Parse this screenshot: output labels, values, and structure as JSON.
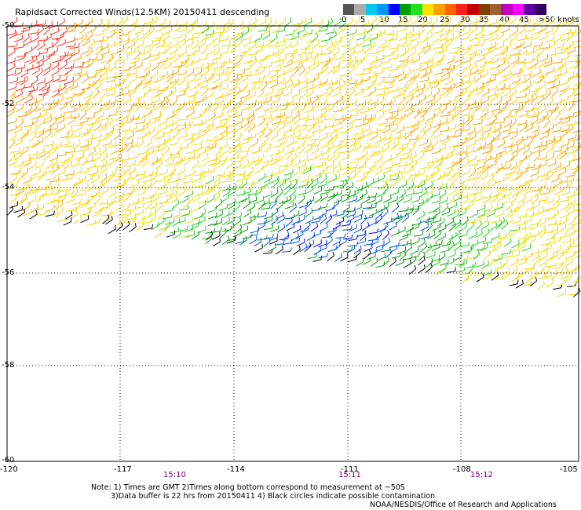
{
  "title": "Rapidsact Corrected Winds(12.5KM) 20150411 descending",
  "legend": {
    "labels": [
      "0",
      "5",
      "10",
      "15",
      "20",
      "25",
      "30",
      "35",
      "40",
      "45",
      ">50 knots"
    ],
    "colors": [
      "#555555",
      "#aaaaaa",
      "#00c8f0",
      "#0096ff",
      "#0000ff",
      "#00a000",
      "#20e020",
      "#ffe000",
      "#ffa000",
      "#ff6600",
      "#ff2020",
      "#c00000",
      "#804000",
      "#a06030",
      "#c000c0",
      "#ff00ff",
      "#6000a0",
      "#300060"
    ]
  },
  "map": {
    "lat_labels": [
      "-50",
      "-52",
      "-54",
      "-56",
      "-58",
      "-60"
    ],
    "lon_labels": [
      "-120",
      "-117",
      "-114",
      "-111",
      "-108",
      "-105"
    ],
    "times": [
      "15:10",
      "15:11",
      "15:12"
    ]
  },
  "notes": {
    "line1": "Note: 1) Times are GMT 2)Times along bottom correspond to measurement at ~50S",
    "line2": "3)Data buffer is 22 hrs from 20150411 4) Black circles indicate possible contamination",
    "credit": "NOAA/NESDIS/Office of Research and Applications"
  }
}
